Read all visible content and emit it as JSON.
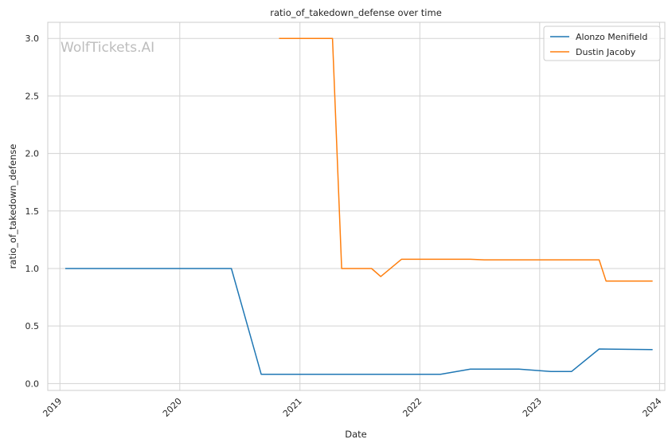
{
  "chart_data": {
    "type": "line",
    "title": "ratio_of_takedown_defense over time",
    "xlabel": "Date",
    "ylabel": "ratio_of_takedown_defense",
    "watermark": "WolfTickets.AI",
    "xlim": [
      "2018-11-25",
      "2024-01-17"
    ],
    "ylim": [
      -0.06,
      3.14
    ],
    "xticks": [
      {
        "label": "2019",
        "date": "2019-01-01"
      },
      {
        "label": "2020",
        "date": "2020-01-01"
      },
      {
        "label": "2021",
        "date": "2021-01-01"
      },
      {
        "label": "2022",
        "date": "2022-01-01"
      },
      {
        "label": "2023",
        "date": "2023-01-01"
      },
      {
        "label": "2024",
        "date": "2024-01-01"
      }
    ],
    "yticks": [
      {
        "label": "0.0",
        "value": 0.0
      },
      {
        "label": "0.5",
        "value": 0.5
      },
      {
        "label": "1.0",
        "value": 1.0
      },
      {
        "label": "1.5",
        "value": 1.5
      },
      {
        "label": "2.0",
        "value": 2.0
      },
      {
        "label": "2.5",
        "value": 2.5
      },
      {
        "label": "3.0",
        "value": 3.0
      }
    ],
    "grid": true,
    "legend_position": "top-right",
    "series": [
      {
        "name": "Alonzo Menifield",
        "color": "#1f77b4",
        "points": [
          {
            "x": "2019-01-19",
            "y": 1.0
          },
          {
            "x": "2020-06-06",
            "y": 1.0
          },
          {
            "x": "2020-09-05",
            "y": 0.08
          },
          {
            "x": "2022-03-05",
            "y": 0.08
          },
          {
            "x": "2022-06-04",
            "y": 0.125
          },
          {
            "x": "2022-10-29",
            "y": 0.125
          },
          {
            "x": "2023-02-04",
            "y": 0.105
          },
          {
            "x": "2023-04-08",
            "y": 0.105
          },
          {
            "x": "2023-07-01",
            "y": 0.3
          },
          {
            "x": "2023-12-09",
            "y": 0.295
          }
        ]
      },
      {
        "name": "Dustin Jacoby",
        "color": "#ff7f0e",
        "points": [
          {
            "x": "2020-10-31",
            "y": 3.0
          },
          {
            "x": "2021-04-10",
            "y": 3.0
          },
          {
            "x": "2021-05-08",
            "y": 1.0
          },
          {
            "x": "2021-08-07",
            "y": 1.0
          },
          {
            "x": "2021-09-04",
            "y": 0.93
          },
          {
            "x": "2021-11-06",
            "y": 1.08
          },
          {
            "x": "2022-06-04",
            "y": 1.08
          },
          {
            "x": "2022-07-16",
            "y": 1.075
          },
          {
            "x": "2023-07-01",
            "y": 1.075
          },
          {
            "x": "2023-07-22",
            "y": 0.89
          },
          {
            "x": "2023-12-09",
            "y": 0.89
          }
        ]
      }
    ]
  }
}
